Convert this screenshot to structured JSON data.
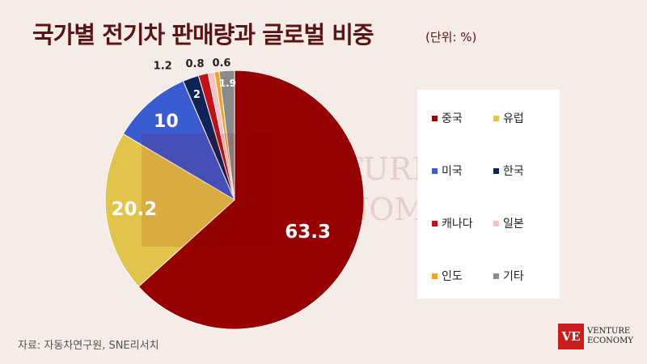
{
  "chart_data": {
    "type": "pie",
    "title": "국가별 전기차 판매량과 글로벌 비중",
    "subtitle": "(단위: %)",
    "categories": [
      "중국",
      "유럽",
      "미국",
      "한국",
      "캐나다",
      "일본",
      "인도",
      "기타"
    ],
    "values": [
      63.3,
      20.2,
      10,
      2,
      1.2,
      0.8,
      0.6,
      1.9
    ],
    "colors": [
      "#960000",
      "#e3c44b",
      "#3b5bd0",
      "#0e2456",
      "#c40f14",
      "#f4c4c4",
      "#f2a32a",
      "#8a8a8a"
    ],
    "legend_position": "right",
    "start": "top, clockwise"
  },
  "source": "자료: 자동차연구원, SNE리서치",
  "logo": {
    "mark": "VE",
    "line1": "VENTURE",
    "line2": "ECONOMY"
  },
  "watermark": {
    "line1": "VENTURE",
    "line2": "ECONOMY"
  }
}
